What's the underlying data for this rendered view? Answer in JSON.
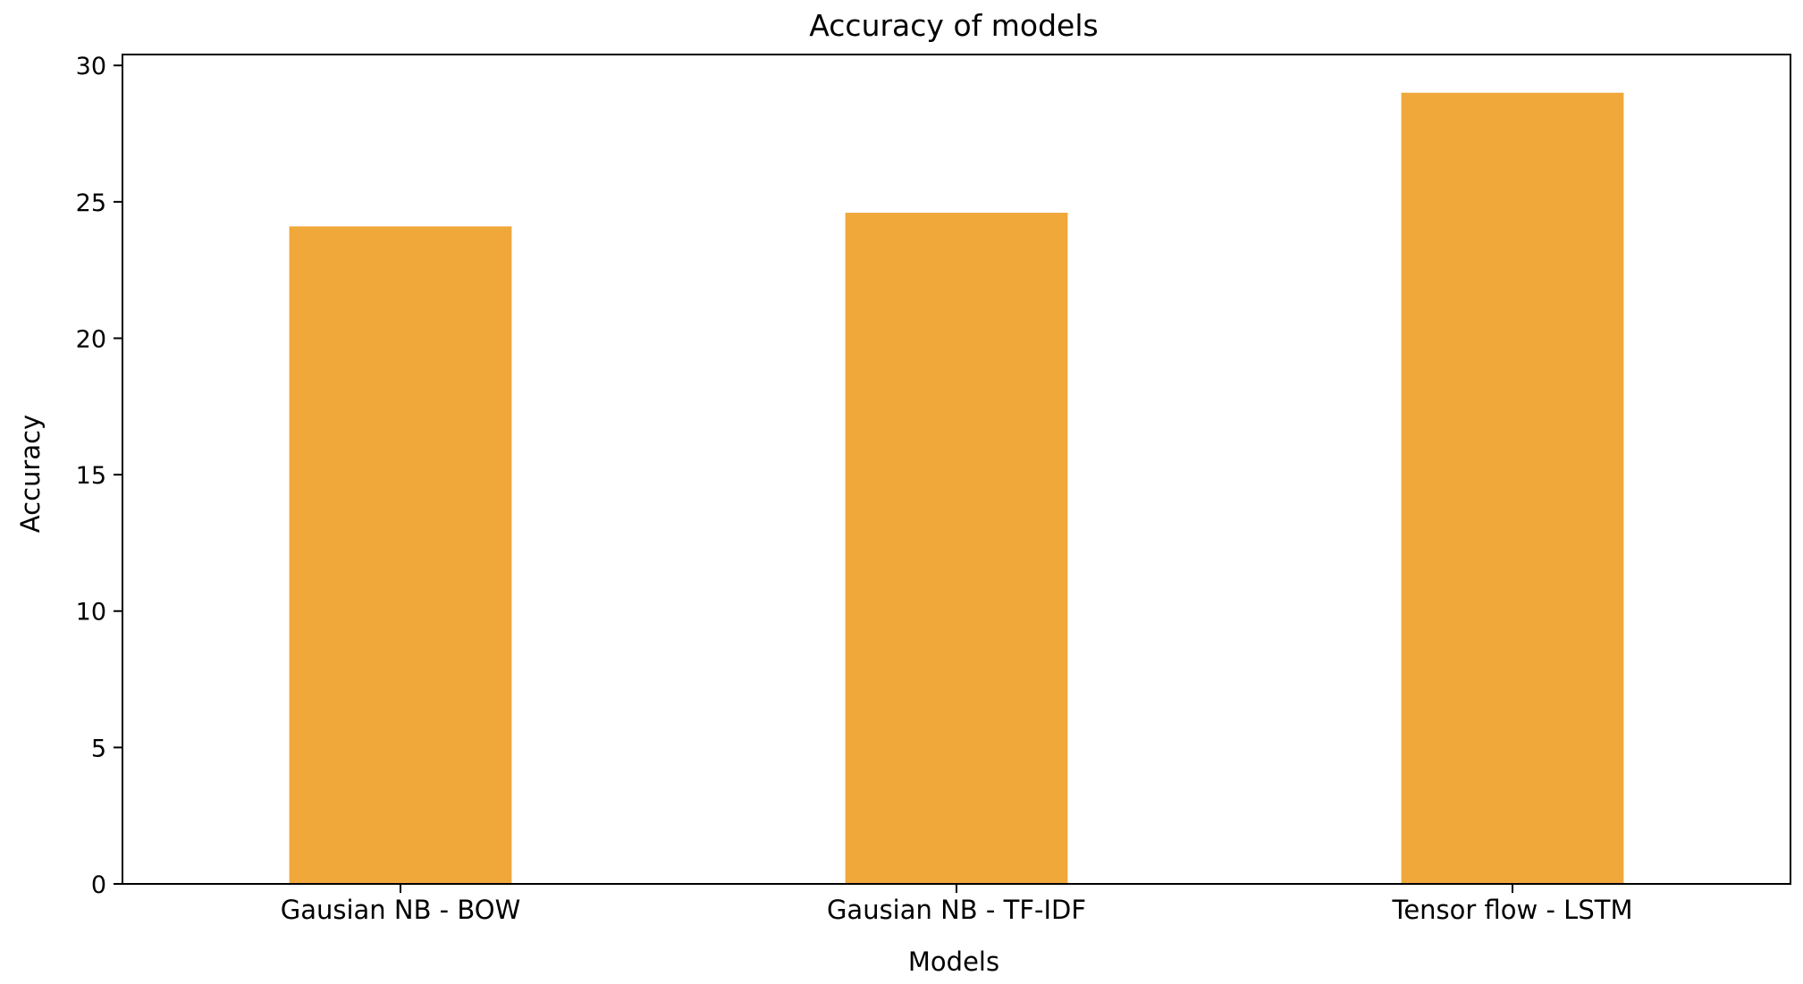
{
  "chart_data": {
    "type": "bar",
    "title": "Accuracy of models",
    "xlabel": "Models",
    "ylabel": "Accuracy",
    "categories": [
      "Gausian NB - BOW",
      "Gausian NB - TF-IDF",
      "Tensor flow - LSTM"
    ],
    "values": [
      24.1,
      24.6,
      29.0
    ],
    "ylim": [
      0,
      30.4
    ],
    "yticks": [
      0,
      5,
      10,
      15,
      20,
      25,
      30
    ],
    "ytick_labels": [
      "0",
      "5",
      "10",
      "15",
      "20",
      "25",
      "30"
    ],
    "bar_color": "#f0a83b",
    "grid": false,
    "legend": "none"
  }
}
